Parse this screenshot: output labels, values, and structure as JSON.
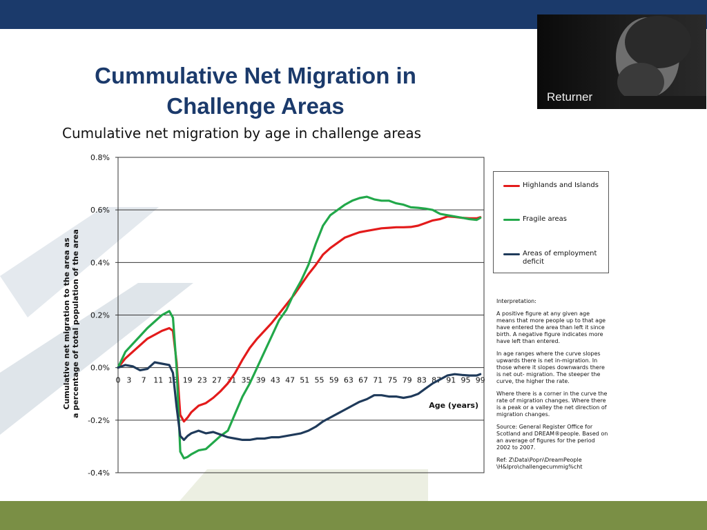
{
  "slide": {
    "title": "Cummulative Net Migration in\nChallenge Areas",
    "photo_caption": "Returner"
  },
  "colors": {
    "header_band": "#1b3a6b",
    "footer_band": "#7a8f45",
    "title": "#1b3a6b",
    "highlands": "#e31b1b",
    "fragile": "#22a84a",
    "employment": "#1f3a5a"
  },
  "notes": {
    "heading": "Interpretation:",
    "p1": "A positive figure at any given age\nmeans that more people up to that age\nhave entered the area than left it since\nbirth. A negative figure indicates more\nhave left than entered.",
    "p2": "In age ranges where the curve slopes\nupwards there is net in-migration. In\nthose where it slopes downwards  there\nis net out- migration. The steeper the\ncurve, the higher the rate.",
    "p3": "Where there is a corner in the curve  the\nrate of migration changes.  Where there\nis a peak or a valley the net direction of\nmigration changes.",
    "p4": "Source: General Register Office for\nScotland and DREAM®people. Based on\nan average of figures for the period\n2002 to 2007.",
    "p5": "Ref: Z\\Data\\Popn\\DreamPeople\n\\H&Ipro\\challengecummig%cht"
  },
  "chart_data": {
    "type": "line",
    "title": "Cumulative net migration by age in challenge areas",
    "xlabel": "Age (years)",
    "ylabel": "Cumulative  net migration to the area as\na percentage of total population of the area",
    "ylim": [
      -0.4,
      0.8
    ],
    "xlim": [
      0,
      100
    ],
    "x_ticks": [
      "0",
      "3",
      "7",
      "11",
      "15",
      "19",
      "23",
      "27",
      "31",
      "35",
      "39",
      "43",
      "47",
      "51",
      "55",
      "59",
      "63",
      "67",
      "71",
      "75",
      "79",
      "83",
      "87",
      "91",
      "95",
      "99"
    ],
    "y_ticks": [
      "0.8%",
      "0.6%",
      "0.4%",
      "0.2%",
      "0.0%",
      "-0.2%",
      "-0.4%"
    ],
    "grid": true,
    "legend_position": "right",
    "series": [
      {
        "name": "Highlands and Islands",
        "color": "#e31b1b",
        "x": [
          0,
          2,
          4,
          6,
          8,
          10,
          12,
          14,
          15,
          16,
          17,
          18,
          19,
          20,
          22,
          24,
          26,
          28,
          30,
          32,
          34,
          36,
          38,
          40,
          42,
          44,
          46,
          48,
          50,
          52,
          54,
          56,
          58,
          60,
          62,
          64,
          66,
          68,
          70,
          72,
          74,
          76,
          78,
          80,
          82,
          84,
          86,
          88,
          90,
          92,
          94,
          96,
          98,
          99
        ],
        "y": [
          0.0,
          0.035,
          0.06,
          0.085,
          0.11,
          0.125,
          0.14,
          0.15,
          0.14,
          0.02,
          -0.18,
          -0.205,
          -0.19,
          -0.17,
          -0.145,
          -0.135,
          -0.115,
          -0.09,
          -0.06,
          -0.02,
          0.03,
          0.075,
          0.11,
          0.14,
          0.17,
          0.205,
          0.24,
          0.275,
          0.315,
          0.355,
          0.39,
          0.43,
          0.455,
          0.475,
          0.495,
          0.505,
          0.515,
          0.52,
          0.525,
          0.53,
          0.532,
          0.534,
          0.534,
          0.535,
          0.54,
          0.55,
          0.56,
          0.565,
          0.575,
          0.573,
          0.57,
          0.568,
          0.568,
          0.572
        ]
      },
      {
        "name": "Fragile areas",
        "color": "#22a84a",
        "x": [
          0,
          2,
          4,
          6,
          8,
          10,
          12,
          14,
          15,
          16,
          17,
          18,
          19,
          20,
          22,
          24,
          26,
          28,
          30,
          32,
          34,
          36,
          38,
          40,
          42,
          44,
          46,
          48,
          50,
          52,
          54,
          56,
          58,
          60,
          62,
          64,
          66,
          68,
          70,
          72,
          74,
          76,
          78,
          80,
          82,
          84,
          86,
          88,
          90,
          92,
          94,
          96,
          98,
          99
        ],
        "y": [
          0.0,
          0.06,
          0.09,
          0.12,
          0.15,
          0.175,
          0.2,
          0.215,
          0.19,
          0.0,
          -0.32,
          -0.345,
          -0.34,
          -0.33,
          -0.315,
          -0.31,
          -0.285,
          -0.26,
          -0.24,
          -0.175,
          -0.11,
          -0.06,
          0.0,
          0.06,
          0.12,
          0.18,
          0.22,
          0.28,
          0.33,
          0.39,
          0.47,
          0.54,
          0.58,
          0.6,
          0.62,
          0.635,
          0.645,
          0.65,
          0.64,
          0.635,
          0.635,
          0.625,
          0.62,
          0.61,
          0.608,
          0.605,
          0.6,
          0.585,
          0.58,
          0.575,
          0.57,
          0.565,
          0.562,
          0.57
        ]
      },
      {
        "name": "Areas of employment deficit",
        "color": "#1f3a5a",
        "x": [
          0,
          2,
          4,
          6,
          8,
          10,
          12,
          14,
          15,
          16,
          17,
          18,
          19,
          20,
          22,
          24,
          26,
          28,
          30,
          32,
          34,
          36,
          38,
          40,
          42,
          44,
          46,
          48,
          50,
          52,
          54,
          56,
          58,
          60,
          62,
          64,
          66,
          68,
          70,
          72,
          74,
          76,
          78,
          80,
          82,
          84,
          86,
          88,
          90,
          92,
          94,
          96,
          98,
          99
        ],
        "y": [
          0.0,
          0.01,
          0.005,
          -0.01,
          -0.005,
          0.02,
          0.015,
          0.01,
          -0.02,
          -0.15,
          -0.26,
          -0.275,
          -0.26,
          -0.25,
          -0.24,
          -0.25,
          -0.245,
          -0.255,
          -0.265,
          -0.27,
          -0.275,
          -0.275,
          -0.27,
          -0.27,
          -0.265,
          -0.265,
          -0.26,
          -0.255,
          -0.25,
          -0.24,
          -0.225,
          -0.205,
          -0.19,
          -0.175,
          -0.16,
          -0.145,
          -0.13,
          -0.12,
          -0.105,
          -0.105,
          -0.11,
          -0.11,
          -0.115,
          -0.11,
          -0.1,
          -0.08,
          -0.06,
          -0.045,
          -0.03,
          -0.025,
          -0.028,
          -0.03,
          -0.03,
          -0.025
        ]
      }
    ]
  }
}
